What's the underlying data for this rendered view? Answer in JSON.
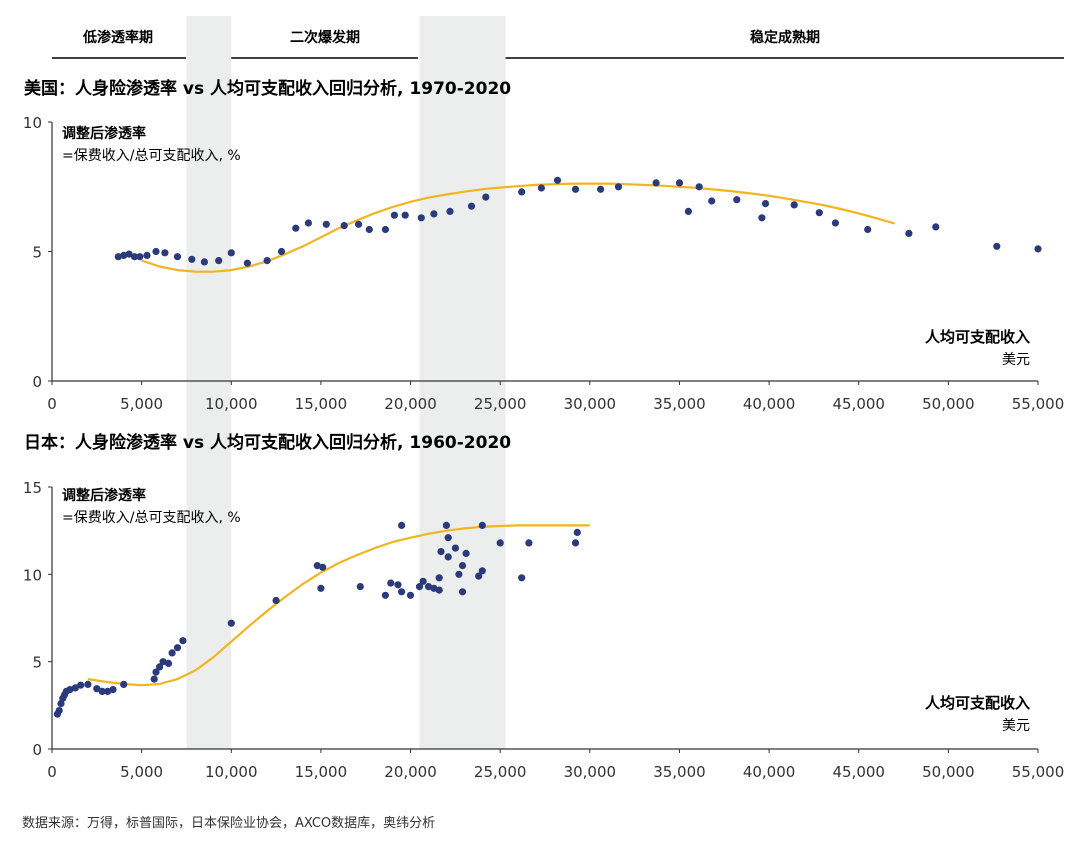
{
  "header": {
    "phases": [
      "低渗透率期",
      "二次爆发期",
      "稳定成熟期"
    ],
    "phase_bands": [
      [
        7500,
        10000
      ],
      [
        20500,
        25300
      ]
    ]
  },
  "colors": {
    "dots": "#2b3a7a",
    "curve": "#f2b41f",
    "band": "#eceeed",
    "axis": "#333333",
    "text": "#1a1a1a"
  },
  "source": "数据来源：万得，标普国际，日本保险业协会，AXCO数据库，奥纬分析",
  "chart_data": [
    {
      "type": "scatter",
      "title": "美国：人身险渗透率 vs 人均可支配收入回归分析, 1970-2020",
      "ylabel": "调整后渗透率",
      "ylabel_sub": "=保费收入/总可支配收入, %",
      "xlabel": "人均可支配收入",
      "xlabel_sub": "美元",
      "xlim": [
        0,
        55000
      ],
      "ylim": [
        0,
        10
      ],
      "xticks": [
        0,
        5000,
        10000,
        15000,
        20000,
        25000,
        30000,
        35000,
        40000,
        45000,
        50000,
        55000
      ],
      "xtick_labels": [
        "0",
        "5,000",
        "10,000",
        "15,000",
        "20,000",
        "25,000",
        "30,000",
        "35,000",
        "40,000",
        "45,000",
        "50,000",
        "55,000"
      ],
      "yticks": [
        0,
        5,
        10
      ],
      "points": [
        [
          3700,
          4.8
        ],
        [
          4000,
          4.85
        ],
        [
          4300,
          4.9
        ],
        [
          4600,
          4.8
        ],
        [
          4900,
          4.8
        ],
        [
          5300,
          4.85
        ],
        [
          5800,
          5.0
        ],
        [
          6300,
          4.95
        ],
        [
          7000,
          4.8
        ],
        [
          7800,
          4.7
        ],
        [
          8500,
          4.6
        ],
        [
          9300,
          4.65
        ],
        [
          10000,
          4.95
        ],
        [
          10900,
          4.55
        ],
        [
          12000,
          4.65
        ],
        [
          12800,
          5.0
        ],
        [
          13600,
          5.9
        ],
        [
          14300,
          6.1
        ],
        [
          15300,
          6.05
        ],
        [
          16300,
          6.0
        ],
        [
          17100,
          6.05
        ],
        [
          17700,
          5.85
        ],
        [
          18600,
          5.85
        ],
        [
          19100,
          6.4
        ],
        [
          19700,
          6.4
        ],
        [
          20600,
          6.3
        ],
        [
          21300,
          6.45
        ],
        [
          22200,
          6.55
        ],
        [
          23400,
          6.75
        ],
        [
          24200,
          7.1
        ],
        [
          26200,
          7.3
        ],
        [
          27300,
          7.45
        ],
        [
          28200,
          7.75
        ],
        [
          29200,
          7.4
        ],
        [
          30600,
          7.4
        ],
        [
          31600,
          7.5
        ],
        [
          33700,
          7.65
        ],
        [
          35000,
          7.65
        ],
        [
          35500,
          6.55
        ],
        [
          36100,
          7.5
        ],
        [
          36800,
          6.95
        ],
        [
          38200,
          7.0
        ],
        [
          39600,
          6.3
        ],
        [
          39800,
          6.85
        ],
        [
          41400,
          6.8
        ],
        [
          42800,
          6.5
        ],
        [
          43700,
          6.1
        ],
        [
          45500,
          5.85
        ],
        [
          47800,
          5.7
        ],
        [
          49300,
          5.95
        ],
        [
          52700,
          5.2
        ],
        [
          55000,
          5.1
        ]
      ],
      "fit_curve": [
        [
          5000,
          4.65
        ],
        [
          6000,
          4.42
        ],
        [
          7000,
          4.28
        ],
        [
          8000,
          4.22
        ],
        [
          9000,
          4.22
        ],
        [
          10000,
          4.28
        ],
        [
          11000,
          4.42
        ],
        [
          12000,
          4.62
        ],
        [
          13000,
          4.9
        ],
        [
          14000,
          5.2
        ],
        [
          15000,
          5.55
        ],
        [
          16000,
          5.9
        ],
        [
          17000,
          6.2
        ],
        [
          18000,
          6.48
        ],
        [
          19000,
          6.72
        ],
        [
          20000,
          6.92
        ],
        [
          21000,
          7.08
        ],
        [
          22000,
          7.2
        ],
        [
          23000,
          7.31
        ],
        [
          24000,
          7.4
        ],
        [
          25000,
          7.47
        ],
        [
          26000,
          7.52
        ],
        [
          27000,
          7.57
        ],
        [
          28000,
          7.6
        ],
        [
          29000,
          7.62
        ],
        [
          30000,
          7.62
        ],
        [
          31000,
          7.62
        ],
        [
          32000,
          7.6
        ],
        [
          33000,
          7.57
        ],
        [
          34000,
          7.54
        ],
        [
          35000,
          7.5
        ],
        [
          36000,
          7.45
        ],
        [
          37000,
          7.39
        ],
        [
          38000,
          7.32
        ],
        [
          39000,
          7.24
        ],
        [
          40000,
          7.15
        ],
        [
          41000,
          7.04
        ],
        [
          42000,
          6.92
        ],
        [
          43000,
          6.79
        ],
        [
          44000,
          6.64
        ],
        [
          45000,
          6.47
        ],
        [
          46000,
          6.28
        ],
        [
          47000,
          6.08
        ]
      ]
    },
    {
      "type": "scatter",
      "title": "日本：人身险渗透率 vs 人均可支配收入回归分析, 1960-2020",
      "ylabel": "调整后渗透率",
      "ylabel_sub": "=保费收入/总可支配收入, %",
      "xlabel": "人均可支配收入",
      "xlabel_sub": "美元",
      "xlim": [
        0,
        55000
      ],
      "ylim": [
        0,
        15
      ],
      "xticks": [
        0,
        5000,
        10000,
        15000,
        20000,
        25000,
        30000,
        35000,
        40000,
        45000,
        50000,
        55000
      ],
      "xtick_labels": [
        "0",
        "5,000",
        "10,000",
        "15,000",
        "20,000",
        "25,000",
        "30,000",
        "35,000",
        "40,000",
        "45,000",
        "50,000",
        "55,000"
      ],
      "yticks": [
        0,
        5,
        10,
        15
      ],
      "points": [
        [
          300,
          2.0
        ],
        [
          400,
          2.2
        ],
        [
          500,
          2.6
        ],
        [
          600,
          2.9
        ],
        [
          700,
          3.1
        ],
        [
          800,
          3.3
        ],
        [
          1000,
          3.4
        ],
        [
          1300,
          3.5
        ],
        [
          1600,
          3.65
        ],
        [
          2000,
          3.7
        ],
        [
          2500,
          3.45
        ],
        [
          2800,
          3.3
        ],
        [
          3100,
          3.3
        ],
        [
          3400,
          3.4
        ],
        [
          4000,
          3.7
        ],
        [
          5700,
          4.0
        ],
        [
          5800,
          4.4
        ],
        [
          6000,
          4.7
        ],
        [
          6200,
          5.0
        ],
        [
          6500,
          4.9
        ],
        [
          6700,
          5.5
        ],
        [
          7000,
          5.8
        ],
        [
          7300,
          6.2
        ],
        [
          10000,
          7.2
        ],
        [
          12500,
          8.5
        ],
        [
          14800,
          10.5
        ],
        [
          15100,
          10.4
        ],
        [
          15000,
          9.2
        ],
        [
          17200,
          9.3
        ],
        [
          18600,
          8.8
        ],
        [
          18900,
          9.5
        ],
        [
          19300,
          9.4
        ],
        [
          19500,
          9.0
        ],
        [
          19500,
          12.8
        ],
        [
          20000,
          8.8
        ],
        [
          20500,
          9.3
        ],
        [
          20700,
          9.6
        ],
        [
          21000,
          9.3
        ],
        [
          21300,
          9.2
        ],
        [
          21600,
          9.1
        ],
        [
          21600,
          9.8
        ],
        [
          21700,
          11.3
        ],
        [
          22000,
          12.8
        ],
        [
          22100,
          12.1
        ],
        [
          22100,
          11.0
        ],
        [
          22500,
          11.5
        ],
        [
          22700,
          10.0
        ],
        [
          22900,
          10.5
        ],
        [
          23100,
          11.2
        ],
        [
          22900,
          9.0
        ],
        [
          23800,
          9.9
        ],
        [
          24000,
          10.2
        ],
        [
          24000,
          12.8
        ],
        [
          25000,
          11.8
        ],
        [
          26200,
          9.8
        ],
        [
          26600,
          11.8
        ],
        [
          29200,
          11.8
        ],
        [
          29300,
          12.4
        ]
      ],
      "fit_curve": [
        [
          2000,
          4.0
        ],
        [
          3000,
          3.85
        ],
        [
          4000,
          3.72
        ],
        [
          5000,
          3.65
        ],
        [
          6000,
          3.72
        ],
        [
          7000,
          4.0
        ],
        [
          8000,
          4.5
        ],
        [
          9000,
          5.25
        ],
        [
          10000,
          6.15
        ],
        [
          11000,
          7.05
        ],
        [
          12000,
          7.9
        ],
        [
          13000,
          8.7
        ],
        [
          14000,
          9.45
        ],
        [
          15000,
          10.1
        ],
        [
          16000,
          10.65
        ],
        [
          17000,
          11.1
        ],
        [
          18000,
          11.5
        ],
        [
          19000,
          11.85
        ],
        [
          20000,
          12.1
        ],
        [
          21000,
          12.32
        ],
        [
          22000,
          12.5
        ],
        [
          23000,
          12.63
        ],
        [
          24000,
          12.72
        ],
        [
          25000,
          12.77
        ],
        [
          26000,
          12.8
        ],
        [
          27000,
          12.8
        ],
        [
          28000,
          12.8
        ],
        [
          29000,
          12.8
        ],
        [
          30000,
          12.8
        ]
      ]
    }
  ]
}
